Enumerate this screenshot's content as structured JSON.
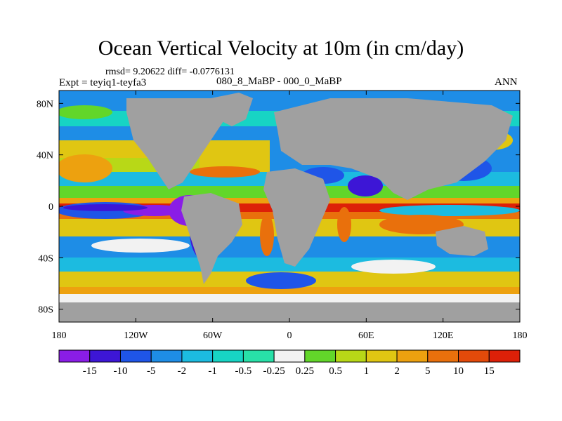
{
  "title": "Ocean Vertical Velocity at 10m (in cm/day)",
  "stats": "rmsd= 9.20622 diff= -0.0776131",
  "expt": "Expt = teyiq1-teyfa3",
  "experiment_name": "080_8_MaBP - 000_0_MaBP",
  "season": "ANN",
  "lat_labels": [
    {
      "text": "80N",
      "lat": 80
    },
    {
      "text": "40N",
      "lat": 40
    },
    {
      "text": "0",
      "lat": 0
    },
    {
      "text": "40S",
      "lat": -40
    },
    {
      "text": "80S",
      "lat": -80
    }
  ],
  "lon_labels": [
    {
      "text": "180",
      "lon": -180
    },
    {
      "text": "120W",
      "lon": -120
    },
    {
      "text": "60W",
      "lon": -60
    },
    {
      "text": "0",
      "lon": 0
    },
    {
      "text": "60E",
      "lon": 60
    },
    {
      "text": "120E",
      "lon": 120
    },
    {
      "text": "180",
      "lon": 180
    }
  ],
  "colorbar": {
    "colors": [
      "#8a1de6",
      "#3d16d6",
      "#1f55e8",
      "#1e8de6",
      "#1cbbe0",
      "#17d4c4",
      "#28e0a8",
      "#f2f2f2",
      "#62d62a",
      "#b8d817",
      "#e0c612",
      "#eda10f",
      "#e9700c",
      "#e44a0a",
      "#dd2008"
    ],
    "labels": [
      "-15",
      "-10",
      "-5",
      "-2",
      "-1",
      "-0.5",
      "-0.25",
      "0.25",
      "0.5",
      "1",
      "2",
      "5",
      "10",
      "15"
    ]
  },
  "land_color": "#a0a0a0"
}
